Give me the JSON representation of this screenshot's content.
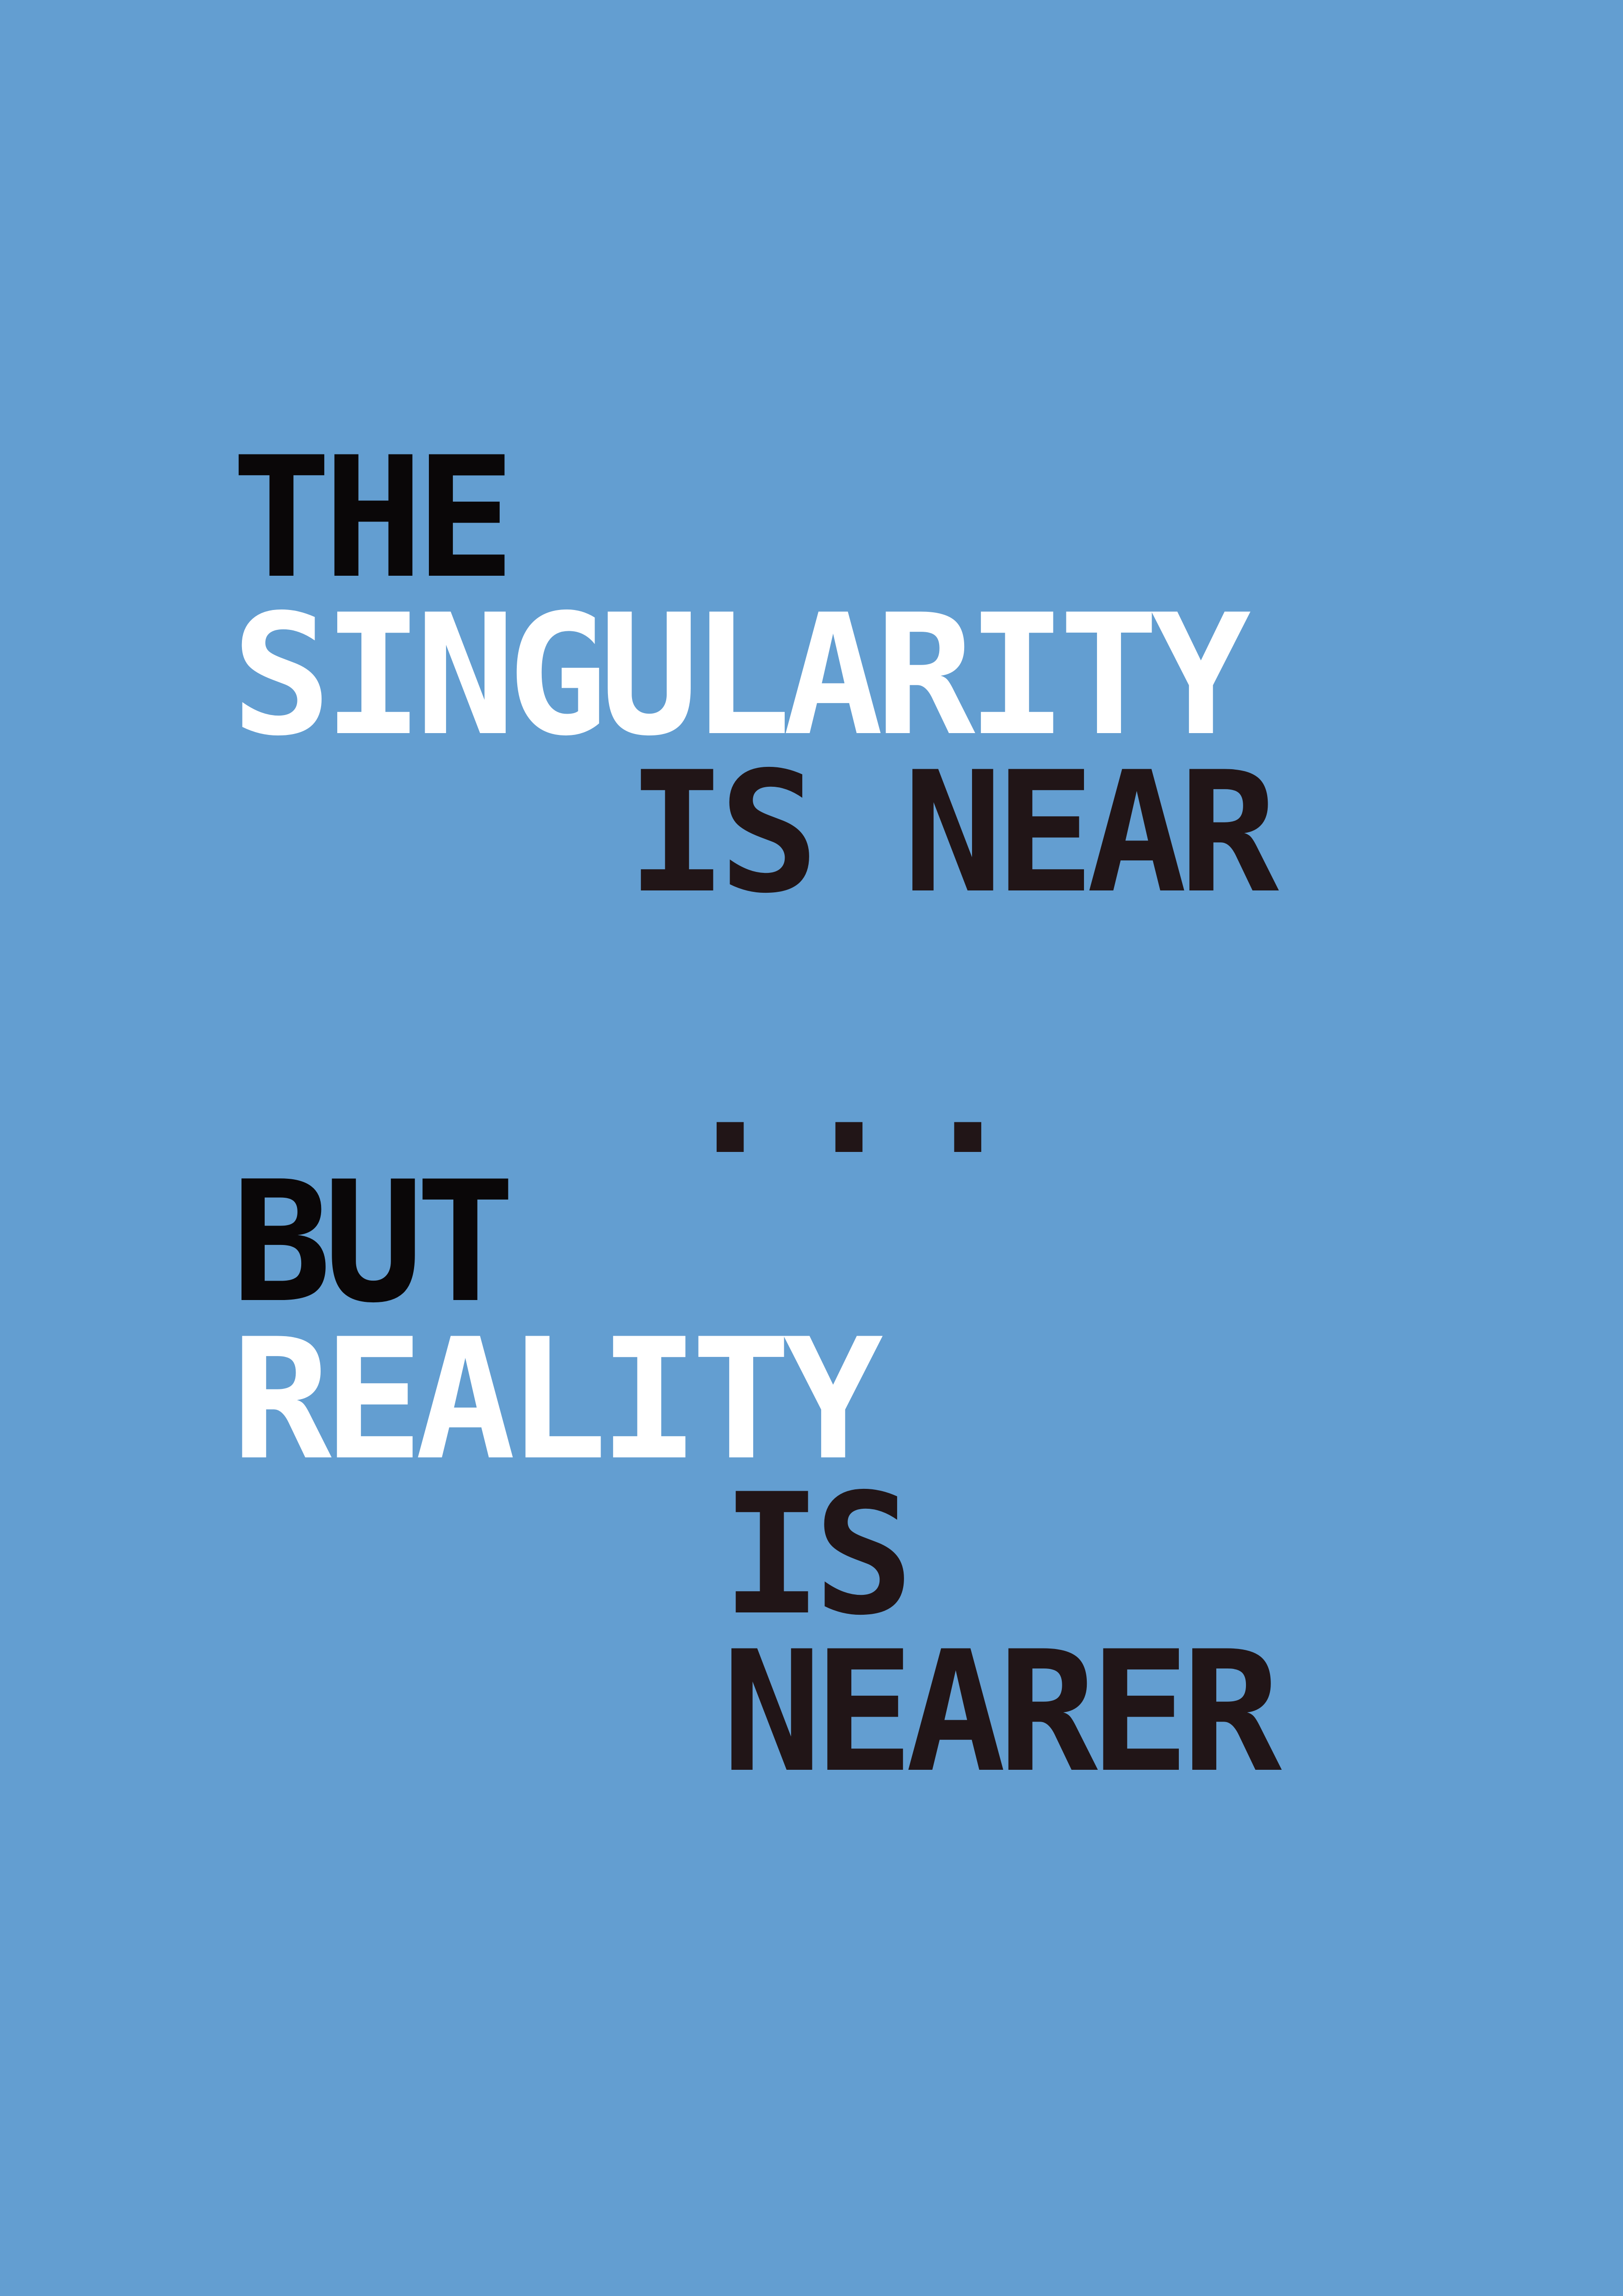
{
  "colors": {
    "background": "#639ed1",
    "white_text": "#ffffff",
    "black_text": "#0a0708",
    "dark_text": "#211517"
  },
  "poster": {
    "line_1": "THE",
    "line_2": "SINGULARITY",
    "line_3": "IS NEAR",
    "ellipsis": "...",
    "line_5": "BUT",
    "line_6": "REALITY",
    "line_7": "IS",
    "line_8": "NEARER"
  }
}
